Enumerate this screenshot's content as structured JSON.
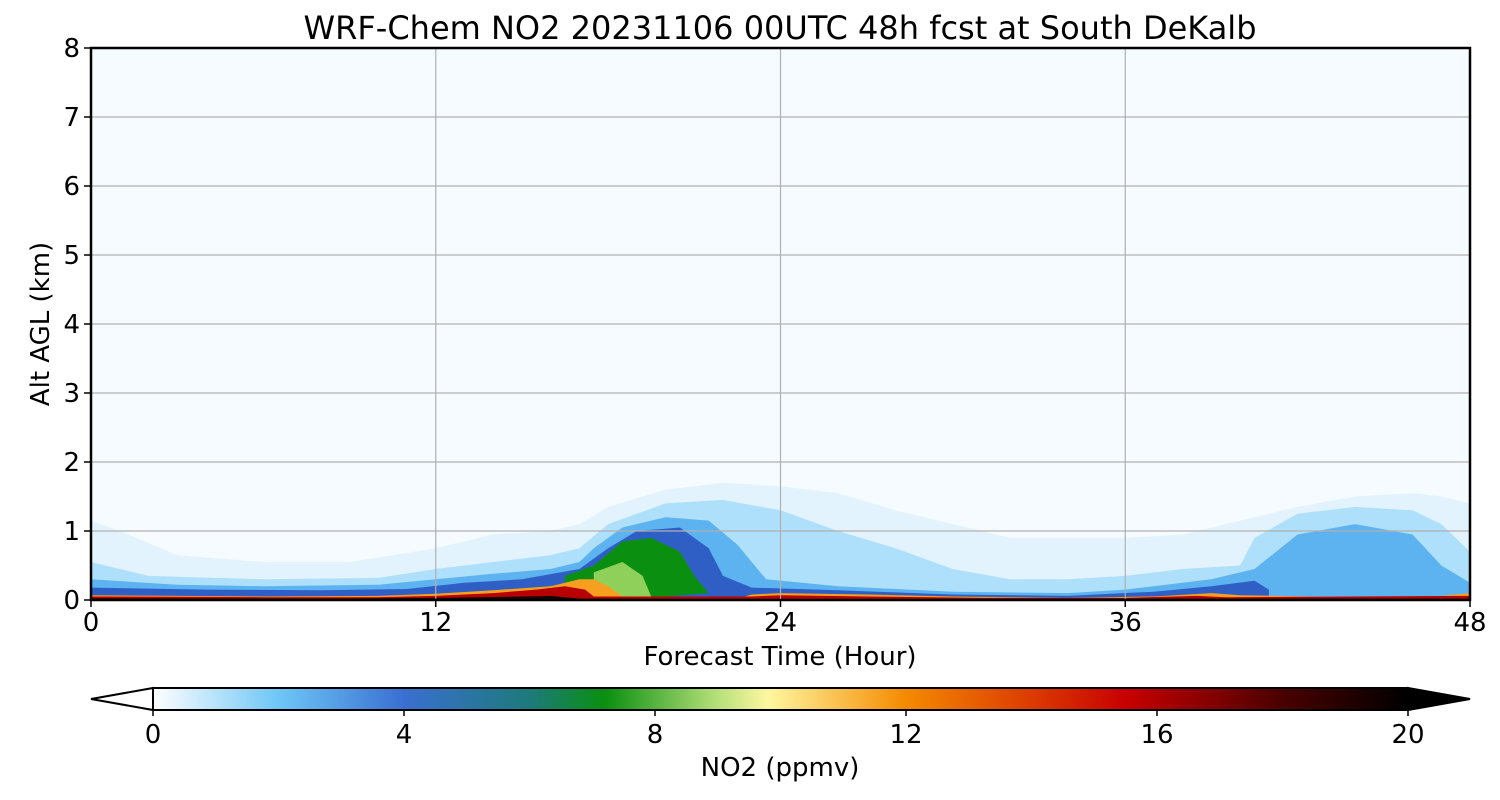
{
  "chart_data": {
    "type": "heatmap",
    "title": "WRF-Chem NO2  20231106 00UTC 48h fcst at South DeKalb",
    "xlabel": "Forecast Time (Hour)",
    "ylabel": "Alt AGL (km)",
    "xlim": [
      0,
      48
    ],
    "ylim": [
      0,
      8
    ],
    "x_ticks": [
      "0",
      "12",
      "24",
      "36",
      "48"
    ],
    "y_ticks": [
      "0",
      "1",
      "2",
      "3",
      "4",
      "5",
      "6",
      "7",
      "8"
    ],
    "grid": true,
    "colorbar": {
      "label": "NO2  (ppmv)",
      "range": [
        0,
        20
      ],
      "extend": "both",
      "tick_values": [
        0,
        4,
        8,
        12,
        16,
        20
      ],
      "tick_labels": [
        "0",
        "4",
        "8",
        "12",
        "16",
        "20"
      ],
      "color_stops": [
        {
          "value": 0,
          "color": "#ffffff"
        },
        {
          "value": 2,
          "color": "#6ec6f7"
        },
        {
          "value": 4,
          "color": "#3a6fd1"
        },
        {
          "value": 6,
          "color": "#1d7a7a"
        },
        {
          "value": 7.2,
          "color": "#0a8f10"
        },
        {
          "value": 9,
          "color": "#b6e07a"
        },
        {
          "value": 9.8,
          "color": "#fff7a0"
        },
        {
          "value": 12,
          "color": "#f58a00"
        },
        {
          "value": 15.5,
          "color": "#c80000"
        },
        {
          "value": 18,
          "color": "#4a0000"
        },
        {
          "value": 20,
          "color": "#000000"
        }
      ]
    },
    "layers": [
      {
        "level": 0.3,
        "color": "#e3f3fd",
        "points": [
          [
            0,
            1.15
          ],
          [
            1,
            1.0
          ],
          [
            3,
            0.65
          ],
          [
            6,
            0.55
          ],
          [
            9,
            0.55
          ],
          [
            12,
            0.75
          ],
          [
            14,
            0.95
          ],
          [
            16,
            1.0
          ],
          [
            17,
            1.1
          ],
          [
            18,
            1.35
          ],
          [
            20,
            1.6
          ],
          [
            22,
            1.7
          ],
          [
            24,
            1.65
          ],
          [
            26,
            1.55
          ],
          [
            28,
            1.3
          ],
          [
            30,
            1.1
          ],
          [
            32,
            0.9
          ],
          [
            34,
            0.9
          ],
          [
            36,
            0.9
          ],
          [
            38,
            0.95
          ],
          [
            40,
            1.15
          ],
          [
            42,
            1.35
          ],
          [
            44,
            1.5
          ],
          [
            46,
            1.55
          ],
          [
            47,
            1.5
          ],
          [
            48,
            1.4
          ]
        ]
      },
      {
        "level": 1.5,
        "color": "#aee0fb",
        "points": [
          [
            0,
            0.55
          ],
          [
            2,
            0.35
          ],
          [
            6,
            0.3
          ],
          [
            10,
            0.32
          ],
          [
            12,
            0.45
          ],
          [
            14,
            0.55
          ],
          [
            16,
            0.65
          ],
          [
            17,
            0.75
          ],
          [
            18,
            1.1
          ],
          [
            20,
            1.4
          ],
          [
            22,
            1.45
          ],
          [
            24,
            1.3
          ],
          [
            26,
            1.0
          ],
          [
            28,
            0.75
          ],
          [
            30,
            0.45
          ],
          [
            32,
            0.3
          ],
          [
            34,
            0.3
          ],
          [
            36,
            0.35
          ],
          [
            38,
            0.45
          ],
          [
            40,
            0.5
          ],
          [
            40.5,
            0.9
          ],
          [
            42,
            1.25
          ],
          [
            44,
            1.35
          ],
          [
            46,
            1.3
          ],
          [
            47,
            1.1
          ],
          [
            48,
            0.7
          ]
        ]
      },
      {
        "level": 3.0,
        "color": "#5cb3f0",
        "points": [
          [
            0,
            0.3
          ],
          [
            3,
            0.22
          ],
          [
            6,
            0.2
          ],
          [
            10,
            0.22
          ],
          [
            12,
            0.3
          ],
          [
            14,
            0.38
          ],
          [
            16,
            0.45
          ],
          [
            17,
            0.55
          ],
          [
            17.5,
            0.75
          ],
          [
            18.5,
            1.05
          ],
          [
            20,
            1.2
          ],
          [
            21.5,
            1.15
          ],
          [
            22.5,
            0.8
          ],
          [
            23.5,
            0.3
          ],
          [
            26,
            0.2
          ],
          [
            30,
            0.12
          ],
          [
            34,
            0.1
          ],
          [
            36,
            0.15
          ],
          [
            39,
            0.3
          ],
          [
            40.5,
            0.45
          ],
          [
            42,
            0.95
          ],
          [
            44,
            1.1
          ],
          [
            46,
            0.95
          ],
          [
            47,
            0.5
          ],
          [
            48,
            0.25
          ]
        ]
      },
      {
        "level": 4.5,
        "color": "#2f5fc4",
        "points": [
          [
            0,
            0.18
          ],
          [
            4,
            0.15
          ],
          [
            8,
            0.14
          ],
          [
            11,
            0.16
          ],
          [
            13,
            0.25
          ],
          [
            15,
            0.3
          ],
          [
            17,
            0.45
          ],
          [
            18,
            0.75
          ],
          [
            19,
            1.0
          ],
          [
            20.5,
            1.05
          ],
          [
            21.5,
            0.75
          ],
          [
            22,
            0.35
          ],
          [
            23,
            0.18
          ],
          [
            26,
            0.14
          ],
          [
            30,
            0.08
          ],
          [
            34,
            0.06
          ],
          [
            37,
            0.12
          ],
          [
            39,
            0.2
          ],
          [
            40.5,
            0.28
          ],
          [
            41,
            0.15
          ]
        ]
      },
      {
        "level": 7.5,
        "color": "#0a8f10",
        "points": [
          [
            16.5,
            0.35
          ],
          [
            17.5,
            0.5
          ],
          [
            18.5,
            0.85
          ],
          [
            19.5,
            0.9
          ],
          [
            20.5,
            0.7
          ],
          [
            21,
            0.35
          ],
          [
            21.5,
            0.1
          ],
          [
            20,
            0.05
          ]
        ]
      },
      {
        "level": 9.0,
        "color": "#8fd05a",
        "points": [
          [
            17.5,
            0.4
          ],
          [
            18.5,
            0.55
          ],
          [
            19.2,
            0.35
          ],
          [
            19.5,
            0.05
          ],
          [
            18,
            0.05
          ]
        ]
      },
      {
        "level": 12.0,
        "color": "#f7a020",
        "points": [
          [
            0,
            0.07
          ],
          [
            6,
            0.05
          ],
          [
            10,
            0.06
          ],
          [
            12,
            0.09
          ],
          [
            14,
            0.14
          ],
          [
            16,
            0.2
          ],
          [
            17,
            0.3
          ],
          [
            17.5,
            0.3
          ],
          [
            18,
            0.2
          ],
          [
            18.5,
            0.05
          ],
          [
            22.5,
            0.02
          ],
          [
            23,
            0.08
          ],
          [
            24,
            0.1
          ],
          [
            27,
            0.08
          ],
          [
            30,
            0.05
          ],
          [
            34,
            0.03
          ],
          [
            37,
            0.05
          ],
          [
            39,
            0.1
          ],
          [
            40,
            0.07
          ],
          [
            46,
            0.02
          ],
          [
            47,
            0.06
          ],
          [
            48,
            0.1
          ]
        ]
      },
      {
        "level": 16.0,
        "color": "#b80000",
        "points": [
          [
            0,
            0.05
          ],
          [
            6,
            0.04
          ],
          [
            10,
            0.04
          ],
          [
            12,
            0.06
          ],
          [
            14,
            0.1
          ],
          [
            15.5,
            0.15
          ],
          [
            16.5,
            0.2
          ],
          [
            17.2,
            0.15
          ],
          [
            17.5,
            0.05
          ],
          [
            23,
            0.05
          ],
          [
            24,
            0.07
          ],
          [
            27,
            0.05
          ],
          [
            31,
            0.03
          ],
          [
            36,
            0.03
          ],
          [
            38.5,
            0.06
          ],
          [
            39.5,
            0.04
          ],
          [
            48,
            0.06
          ]
        ]
      },
      {
        "level": 20.0,
        "color": "#1a0000",
        "points": [
          [
            0,
            0.025
          ],
          [
            8,
            0.02
          ],
          [
            12,
            0.03
          ],
          [
            15,
            0.05
          ],
          [
            16,
            0.06
          ],
          [
            17,
            0.02
          ],
          [
            22,
            0.01
          ],
          [
            30,
            0.015
          ],
          [
            38,
            0.02
          ],
          [
            48,
            0.02
          ]
        ]
      }
    ],
    "grid_color": "#b0b0b0",
    "background_color": "#f5fbfe"
  }
}
